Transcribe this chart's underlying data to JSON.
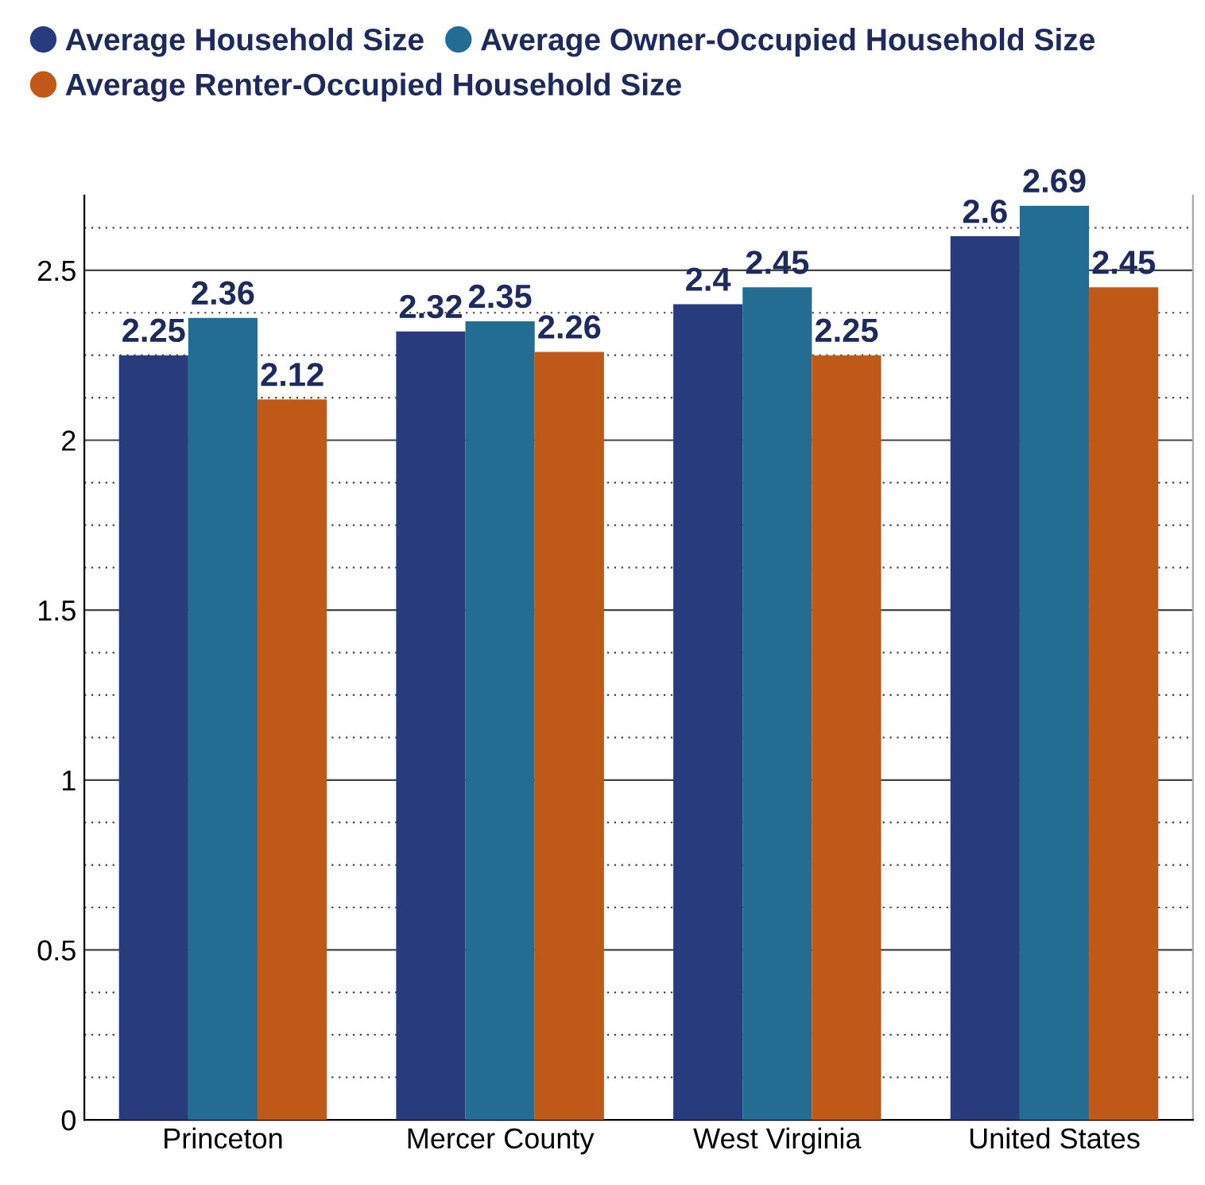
{
  "chart_data": {
    "type": "bar",
    "categories": [
      "Princeton",
      "Mercer County",
      "West Virginia",
      "United States"
    ],
    "series": [
      {
        "name": "Average Household Size",
        "color": "#283b7d",
        "values": [
          2.25,
          2.32,
          2.4,
          2.6
        ]
      },
      {
        "name": "Average Owner-Occupied Household Size",
        "color": "#236d92",
        "values": [
          2.36,
          2.35,
          2.45,
          2.69
        ]
      },
      {
        "name": "Average Renter-Occupied Household Size",
        "color": "#c05817",
        "values": [
          2.12,
          2.26,
          2.25,
          2.45
        ]
      }
    ],
    "ylim": [
      0,
      2.72
    ],
    "yticks": [
      0,
      {
        "value": 0.125,
        "label": null
      },
      {
        "value": 0.25,
        "label": null
      },
      {
        "value": 0.375,
        "label": null
      },
      0.5,
      {
        "value": 0.625,
        "label": null
      },
      {
        "value": 0.75,
        "label": null
      },
      {
        "value": 0.875,
        "label": null
      },
      1,
      {
        "value": 1.125,
        "label": null
      },
      {
        "value": 1.25,
        "label": null
      },
      {
        "value": 1.375,
        "label": null
      },
      1.5,
      {
        "value": 1.625,
        "label": null
      },
      {
        "value": 1.75,
        "label": null
      },
      {
        "value": 1.875,
        "label": null
      },
      2,
      {
        "value": 2.125,
        "label": null
      },
      {
        "value": 2.25,
        "label": null
      },
      {
        "value": 2.375,
        "label": null
      },
      2.5,
      {
        "value": 2.625,
        "label": null
      }
    ],
    "grid": "y",
    "legend": "top",
    "data_labels": true
  }
}
